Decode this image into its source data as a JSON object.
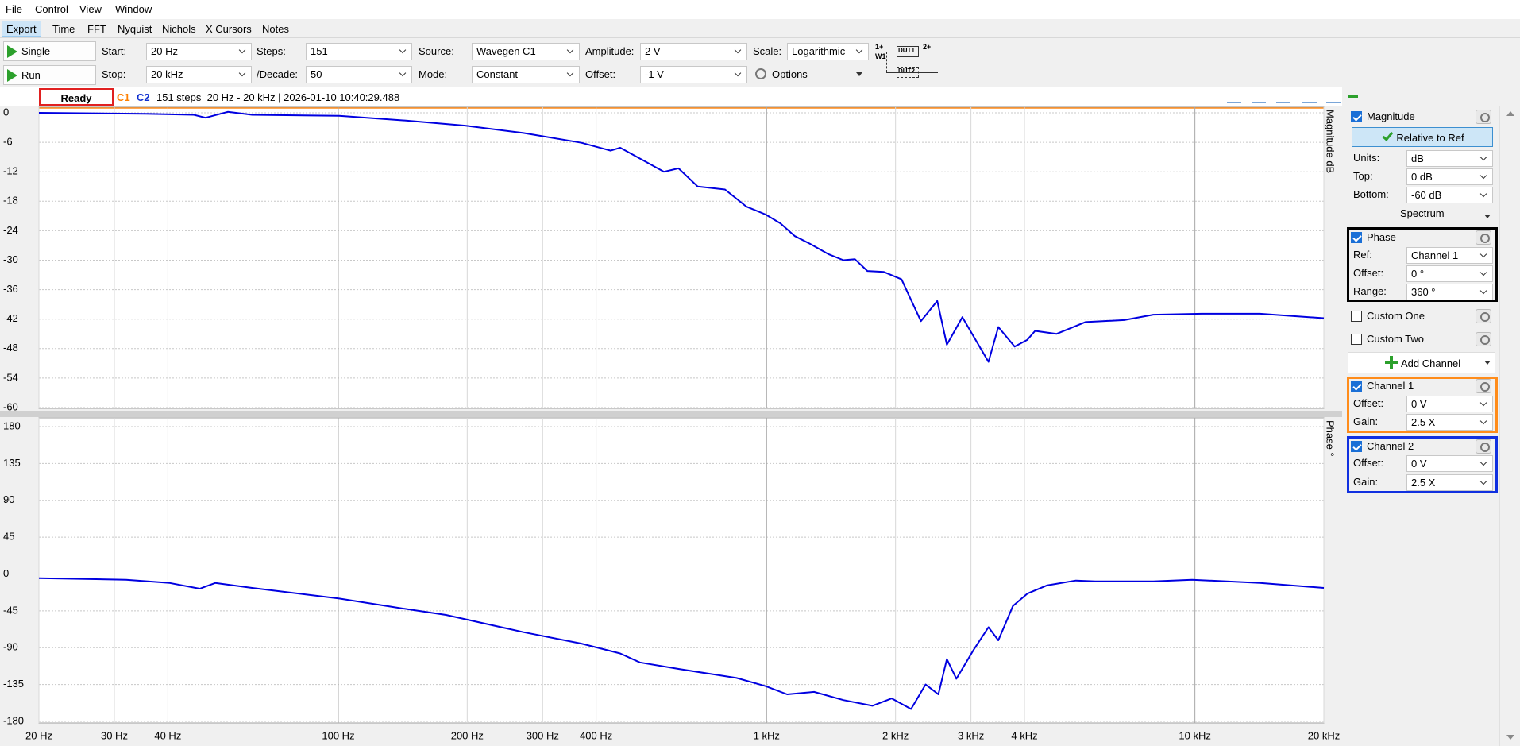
{
  "menu": [
    "File",
    "Control",
    "View",
    "Window"
  ],
  "tabs": [
    "Export",
    "Time",
    "FFT",
    "Nyquist",
    "Nichols",
    "X Cursors",
    "Notes"
  ],
  "toolbar": {
    "buttons": [
      "Single",
      "Run"
    ],
    "fields": [
      {
        "label": "Start:",
        "value": "20 Hz"
      },
      {
        "label": "Stop:",
        "value": "20 kHz"
      },
      {
        "label": "Steps:",
        "value": "151"
      },
      {
        "label": "/Decade:",
        "value": "50"
      },
      {
        "label": "Source:",
        "value": "Wavegen C1"
      },
      {
        "label": "Mode:",
        "value": "Constant"
      },
      {
        "label": "Amplitude:",
        "value": "2 V"
      },
      {
        "label": "Offset:",
        "value": "-1 V"
      },
      {
        "label": "Scale:",
        "value": "Logarithmic"
      }
    ],
    "options": "Options",
    "diagram": [
      "1+",
      "W1",
      "DUT1",
      "2+",
      "DUT2"
    ]
  },
  "status": {
    "state": "Ready",
    "c1": "C1",
    "c2": "C2",
    "info": "151 steps  20 Hz - 20 kHz | 2026-01-10 10:40:29.488"
  },
  "panel": {
    "magnitude": {
      "title": "Magnitude",
      "button": "Relative to Ref",
      "rows": [
        [
          "Units:",
          "dB"
        ],
        [
          "Top:",
          "0 dB"
        ],
        [
          "Bottom:",
          "-60 dB"
        ]
      ],
      "footer": "Spectrum"
    },
    "phase": {
      "title": "Phase",
      "rows": [
        [
          "Ref:",
          "Channel 1"
        ],
        [
          "Offset:",
          "0 °"
        ],
        [
          "Range:",
          "360 °"
        ]
      ]
    },
    "custom": [
      "Custom One",
      "Custom Two"
    ],
    "add": "Add Channel",
    "channel1": {
      "title": "Channel 1",
      "rows": [
        [
          "Offset:",
          "0 V"
        ],
        [
          "Gain:",
          "2.5 X"
        ]
      ]
    },
    "channel2": {
      "title": "Channel 2",
      "rows": [
        [
          "Offset:",
          "0 V"
        ],
        [
          "Gain:",
          "2.5 X"
        ]
      ]
    }
  },
  "chart_data": [
    {
      "type": "line",
      "ylabel": "Magnitude dB",
      "xscale": "log",
      "grid": true,
      "xlim": [
        20,
        20000
      ],
      "ylim": [
        -60,
        0
      ],
      "xticks": [
        20,
        30,
        40,
        100,
        200,
        300,
        400,
        1000,
        2000,
        3000,
        4000,
        10000,
        20000
      ],
      "yticks": [
        0,
        -6,
        -12,
        -18,
        -24,
        -30,
        -36,
        -42,
        -48,
        -54,
        -60
      ],
      "x": [
        20,
        35.5,
        46,
        49,
        55.2,
        62.9,
        100.5,
        144.9,
        197.8,
        270.6,
        369.7,
        432.6,
        455,
        505.8,
        575.9,
        622.7,
        690.6,
        799.6,
        897,
        995,
        1077,
        1164,
        1259,
        1397,
        1511,
        1608,
        1719,
        1879,
        2065,
        2292,
        2503,
        2636,
        2864,
        3296,
        3475,
        3795,
        4062,
        4236,
        4751,
        5550,
        6838,
        7997,
        10376,
        14190,
        20000
      ],
      "series": [
        {
          "color": "#0000e0",
          "values": [
            0,
            -0.2,
            -0.4,
            -1.0,
            0.2,
            -0.4,
            -0.6,
            -1.6,
            -2.6,
            -4.1,
            -6.1,
            -7.7,
            -7.1,
            -9.3,
            -12.0,
            -11.3,
            -15.0,
            -15.6,
            -19.1,
            -20.7,
            -22.5,
            -25.1,
            -26.6,
            -28.8,
            -30.0,
            -29.8,
            -32.2,
            -32.4,
            -33.9,
            -42.4,
            -38.3,
            -47.2,
            -41.6,
            -50.7,
            -43.6,
            -47.6,
            -46.2,
            -44.4,
            -45.0,
            -42.6,
            -42.2,
            -41.1,
            -40.9,
            -40.9,
            -41.8
          ]
        }
      ]
    },
    {
      "type": "line",
      "ylabel": "Phase °",
      "xscale": "log",
      "grid": true,
      "xlim": [
        20,
        20000
      ],
      "ylim": [
        -180,
        180
      ],
      "xticks": [
        {
          "value": 20,
          "label": "20 Hz"
        },
        {
          "value": 30,
          "label": "30 Hz"
        },
        {
          "value": 40,
          "label": "40 Hz"
        },
        {
          "value": 100,
          "label": "100 Hz"
        },
        {
          "value": 200,
          "label": "200 Hz"
        },
        {
          "value": 300,
          "label": "300 Hz"
        },
        {
          "value": 400,
          "label": "400 Hz"
        },
        {
          "value": 1000,
          "label": "1 kHz"
        },
        {
          "value": 2000,
          "label": "2 kHz"
        },
        {
          "value": 3000,
          "label": "3 kHz"
        },
        {
          "value": 4000,
          "label": "4 kHz"
        },
        {
          "value": 10000,
          "label": "10 kHz"
        },
        {
          "value": 20000,
          "label": "20 kHz"
        }
      ],
      "yticks": [
        180,
        135,
        90,
        45,
        0,
        -45,
        -90,
        -135,
        -180
      ],
      "x": [
        20,
        31.96,
        40.4,
        47.5,
        51.6,
        62.9,
        100.5,
        144.9,
        178.4,
        270.6,
        369.7,
        455,
        505.8,
        622.7,
        851,
        995,
        1117,
        1291,
        1511,
        1766,
        1960,
        2174,
        2351,
        2518,
        2636,
        2774,
        3048,
        3296,
        3475,
        3759,
        4062,
        4510,
        5275,
        5850,
        7997,
        9844,
        14190,
        20000
      ],
      "series": [
        {
          "color": "#0000e0",
          "values": [
            -5,
            -7,
            -11,
            -18,
            -11,
            -17,
            -30,
            -43,
            -50,
            -71,
            -85,
            -97,
            -108,
            -116,
            -127,
            -137,
            -147,
            -144,
            -154,
            -161,
            -152,
            -165,
            -135,
            -147,
            -104,
            -128,
            -92,
            -65,
            -81,
            -39,
            -24,
            -14,
            -8,
            -9,
            -9,
            -7,
            -11,
            -17
          ]
        }
      ]
    }
  ]
}
